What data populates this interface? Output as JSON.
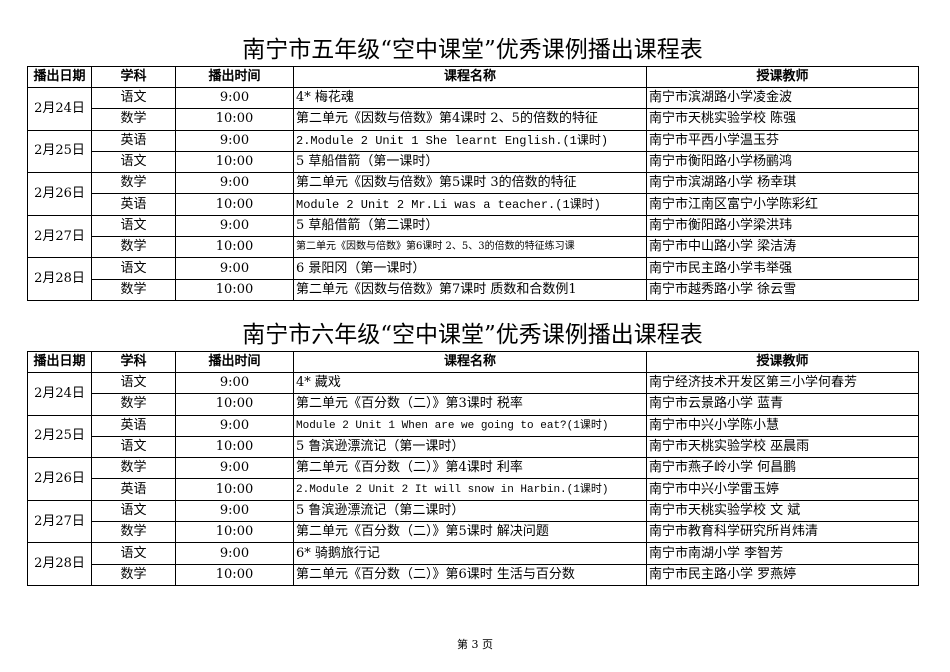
{
  "headers": [
    "播出日期",
    "学科",
    "播出时间",
    "课程名称",
    "授课教师"
  ],
  "tables": [
    {
      "title": "南宁市五年级“空中课堂”优秀课例播出课程表",
      "days": [
        {
          "date": "2月24日",
          "rows": [
            {
              "subject": "语文",
              "time": "9:00",
              "course": "4* 梅花魂",
              "teacher": "南宁市滨湖路小学凌金波"
            },
            {
              "subject": "数学",
              "time": "10:00",
              "course": "第二单元《因数与倍数》第4课时 2、5的倍数的特征",
              "teacher": "南宁市天桃实验学校 陈强"
            }
          ]
        },
        {
          "date": "2月25日",
          "rows": [
            {
              "subject": "英语",
              "time": "9:00",
              "course": "2.Module 2 Unit 1 She learnt English.(1课时)",
              "teacher": "南宁市平西小学温玉芬",
              "style": "mono"
            },
            {
              "subject": "语文",
              "time": "10:00",
              "course": "5 草船借箭（第一课时）",
              "teacher": "南宁市衡阳路小学杨鹂鸿"
            }
          ]
        },
        {
          "date": "2月26日",
          "rows": [
            {
              "subject": "数学",
              "time": "9:00",
              "course": "第二单元《因数与倍数》第5课时 3的倍数的特征",
              "teacher": "南宁市滨湖路小学 杨幸琪"
            },
            {
              "subject": "英语",
              "time": "10:00",
              "course": "Module 2 Unit 2 Mr.Li was a teacher.(1课时)",
              "teacher": "南宁市江南区富宁小学陈彩红",
              "style": "mono"
            }
          ]
        },
        {
          "date": "2月27日",
          "rows": [
            {
              "subject": "语文",
              "time": "9:00",
              "course": "5 草船借箭（第二课时）",
              "teacher": "南宁市衡阳路小学梁洪玮"
            },
            {
              "subject": "数学",
              "time": "10:00",
              "course": "第二单元《因数与倍数》第6课时 2、5、3的倍数的特征练习课",
              "teacher": "南宁市中山路小学 梁洁涛",
              "style": "small"
            }
          ]
        },
        {
          "date": "2月28日",
          "rows": [
            {
              "subject": "语文",
              "time": "9:00",
              "course": "6 景阳冈（第一课时）",
              "teacher": "南宁市民主路小学韦举强"
            },
            {
              "subject": "数学",
              "time": "10:00",
              "course": "第二单元《因数与倍数》第7课时 质数和合数例1",
              "teacher": "南宁市越秀路小学 徐云雪"
            }
          ]
        }
      ]
    },
    {
      "title": "南宁市六年级“空中课堂”优秀课例播出课程表",
      "days": [
        {
          "date": "2月24日",
          "rows": [
            {
              "subject": "语文",
              "time": "9:00",
              "course": "4* 藏戏",
              "teacher": "南宁经济技术开发区第三小学何春芳"
            },
            {
              "subject": "数学",
              "time": "10:00",
              "course": "第二单元《百分数（二）》第3课时 税率",
              "teacher": "南宁市云景路小学 蓝青"
            }
          ]
        },
        {
          "date": "2月25日",
          "rows": [
            {
              "subject": "英语",
              "time": "9:00",
              "course": "Module 2 Unit 1 When are we going to eat?(1课时)",
              "teacher": "南宁市中兴小学陈小慧",
              "style": "monosm"
            },
            {
              "subject": "语文",
              "time": "10:00",
              "course": "5 鲁滨逊漂流记（第一课时）",
              "teacher": "南宁市天桃实验学校 巫晨雨"
            }
          ]
        },
        {
          "date": "2月26日",
          "rows": [
            {
              "subject": "数学",
              "time": "9:00",
              "course": "第二单元《百分数（二）》第4课时 利率",
              "teacher": "南宁市燕子岭小学 何昌鹏"
            },
            {
              "subject": "英语",
              "time": "10:00",
              "course": "2.Module 2 Unit 2 It will snow in Harbin.(1课时)",
              "teacher": "南宁市中兴小学雷玉婷",
              "style": "monosm"
            }
          ]
        },
        {
          "date": "2月27日",
          "rows": [
            {
              "subject": "语文",
              "time": "9:00",
              "course": "5 鲁滨逊漂流记（第二课时）",
              "teacher": "南宁市天桃实验学校 文 斌"
            },
            {
              "subject": "数学",
              "time": "10:00",
              "course": "第二单元《百分数（二）》第5课时 解决问题",
              "teacher": "南宁市教育科学研究所肖炜清"
            }
          ]
        },
        {
          "date": "2月28日",
          "rows": [
            {
              "subject": "语文",
              "time": "9:00",
              "course": "6* 骑鹅旅行记",
              "teacher": "南宁市南湖小学 李智芳"
            },
            {
              "subject": "数学",
              "time": "10:00",
              "course": "第二单元《百分数（二）》第6课时 生活与百分数",
              "teacher": "南宁市民主路小学 罗燕婷"
            }
          ]
        }
      ]
    }
  ],
  "footer": "第 3 页"
}
